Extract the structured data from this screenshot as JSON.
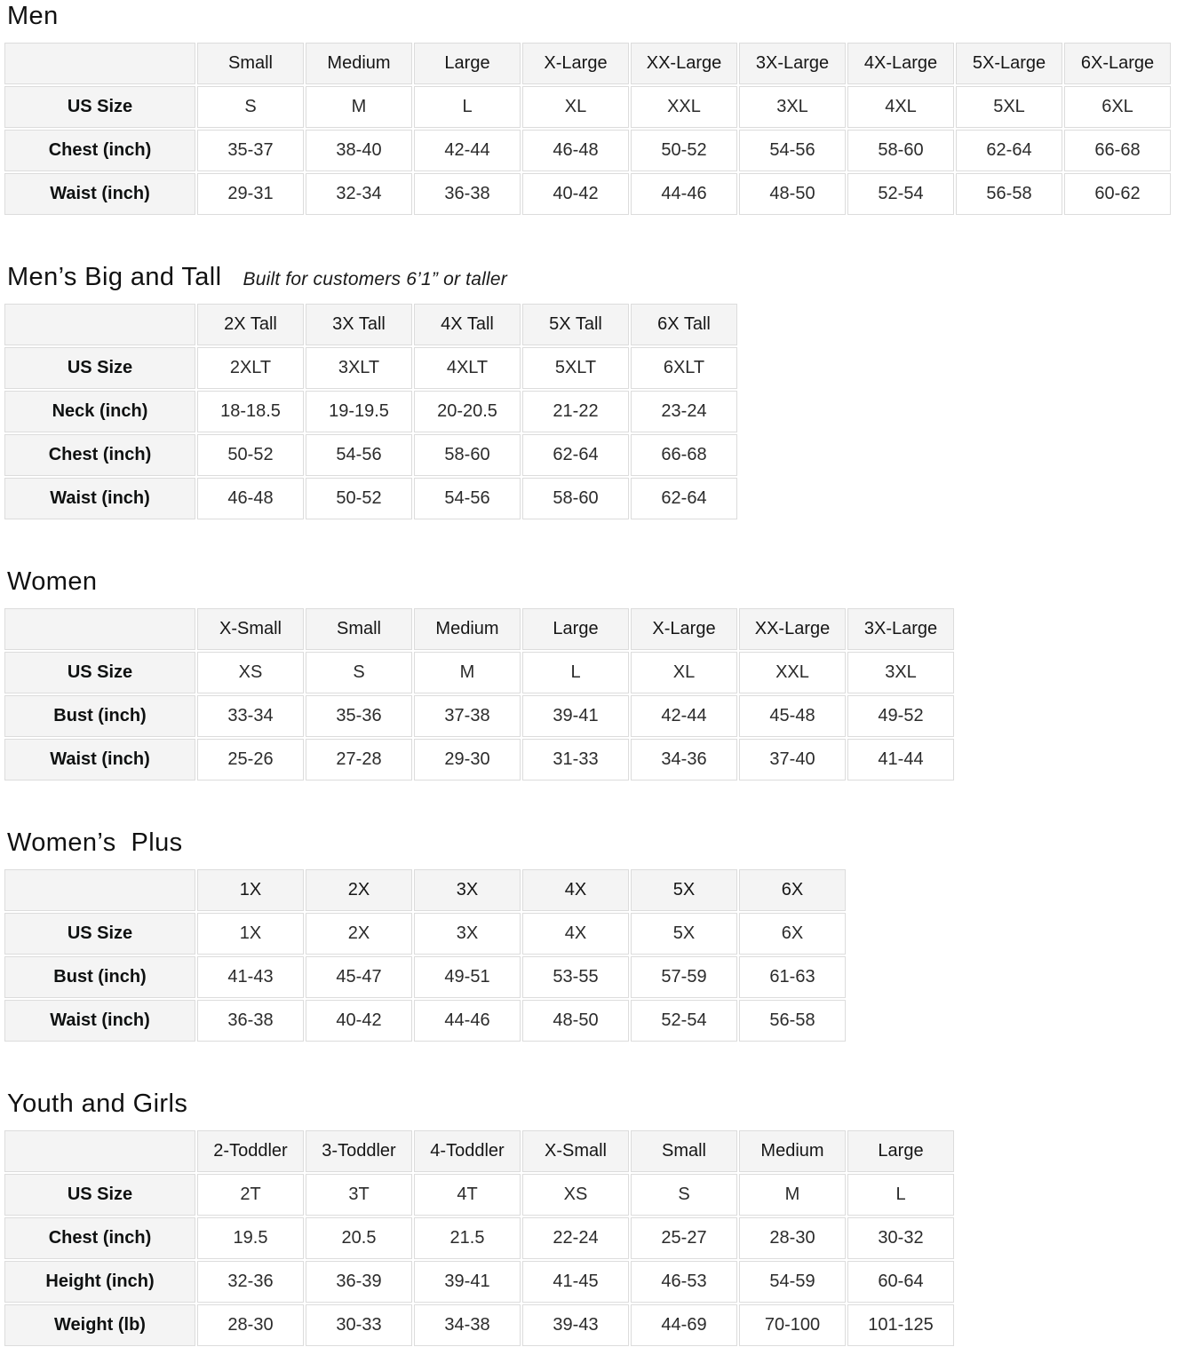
{
  "colors": {
    "page_background": "#ffffff",
    "header_cell_background": "#f4f4f4",
    "label_cell_background": "#f4f4f4",
    "value_cell_background": "#ffffff",
    "cell_border": "#dcdcdc",
    "title_text": "#111111",
    "value_text": "#2b2b2b"
  },
  "sections": [
    {
      "id": "men",
      "title": "Men",
      "subtitle": "",
      "columns": [
        "Small",
        "Medium",
        "Large",
        "X-Large",
        "XX-Large",
        "3X-Large",
        "4X-Large",
        "5X-Large",
        "6X-Large"
      ],
      "rows": [
        {
          "label": "US Size",
          "values": [
            "S",
            "M",
            "L",
            "XL",
            "XXL",
            "3XL",
            "4XL",
            "5XL",
            "6XL"
          ]
        },
        {
          "label": "Chest (inch)",
          "values": [
            "35-37",
            "38-40",
            "42-44",
            "46-48",
            "50-52",
            "54-56",
            "58-60",
            "62-64",
            "66-68"
          ]
        },
        {
          "label": "Waist (inch)",
          "values": [
            "29-31",
            "32-34",
            "36-38",
            "40-42",
            "44-46",
            "48-50",
            "52-54",
            "56-58",
            "60-62"
          ]
        }
      ]
    },
    {
      "id": "mens-big-and-tall",
      "title": "Men’s Big and Tall",
      "subtitle": "Built for customers 6’1” or taller",
      "columns": [
        "2X Tall",
        "3X Tall",
        "4X Tall",
        "5X Tall",
        "6X Tall"
      ],
      "rows": [
        {
          "label": "US Size",
          "values": [
            "2XLT",
            "3XLT",
            "4XLT",
            "5XLT",
            "6XLT"
          ]
        },
        {
          "label": "Neck (inch)",
          "values": [
            "18-18.5",
            "19-19.5",
            "20-20.5",
            "21-22",
            "23-24"
          ]
        },
        {
          "label": "Chest (inch)",
          "values": [
            "50-52",
            "54-56",
            "58-60",
            "62-64",
            "66-68"
          ]
        },
        {
          "label": "Waist (inch)",
          "values": [
            "46-48",
            "50-52",
            "54-56",
            "58-60",
            "62-64"
          ]
        }
      ]
    },
    {
      "id": "women",
      "title": "Women",
      "subtitle": "",
      "columns": [
        "X-Small",
        "Small",
        "Medium",
        "Large",
        "X-Large",
        "XX-Large",
        "3X-Large"
      ],
      "rows": [
        {
          "label": "US Size",
          "values": [
            "XS",
            "S",
            "M",
            "L",
            "XL",
            "XXL",
            "3XL"
          ]
        },
        {
          "label": "Bust (inch)",
          "values": [
            "33-34",
            "35-36",
            "37-38",
            "39-41",
            "42-44",
            "45-48",
            "49-52"
          ]
        },
        {
          "label": "Waist (inch)",
          "values": [
            "25-26",
            "27-28",
            "29-30",
            "31-33",
            "34-36",
            "37-40",
            "41-44"
          ]
        }
      ]
    },
    {
      "id": "womens-plus",
      "title": "Women’s  Plus",
      "subtitle": "",
      "columns": [
        "1X",
        "2X",
        "3X",
        "4X",
        "5X",
        "6X"
      ],
      "rows": [
        {
          "label": "US Size",
          "values": [
            "1X",
            "2X",
            "3X",
            "4X",
            "5X",
            "6X"
          ]
        },
        {
          "label": "Bust (inch)",
          "values": [
            "41-43",
            "45-47",
            "49-51",
            "53-55",
            "57-59",
            "61-63"
          ]
        },
        {
          "label": "Waist (inch)",
          "values": [
            "36-38",
            "40-42",
            "44-46",
            "48-50",
            "52-54",
            "56-58"
          ]
        }
      ]
    },
    {
      "id": "youth-and-girls",
      "title": "Youth and Girls",
      "subtitle": "",
      "columns": [
        "2-Toddler",
        "3-Toddler",
        "4-Toddler",
        "X-Small",
        "Small",
        "Medium",
        "Large"
      ],
      "rows": [
        {
          "label": "US Size",
          "values": [
            "2T",
            "3T",
            "4T",
            "XS",
            "S",
            "M",
            "L"
          ]
        },
        {
          "label": "Chest (inch)",
          "values": [
            "19.5",
            "20.5",
            "21.5",
            "22-24",
            "25-27",
            "28-30",
            "30-32"
          ]
        },
        {
          "label": "Height (inch)",
          "values": [
            "32-36",
            "36-39",
            "39-41",
            "41-45",
            "46-53",
            "54-59",
            "60-64"
          ]
        },
        {
          "label": "Weight (lb)",
          "values": [
            "28-30",
            "30-33",
            "34-38",
            "39-43",
            "44-69",
            "70-100",
            "101-125"
          ]
        }
      ]
    }
  ]
}
